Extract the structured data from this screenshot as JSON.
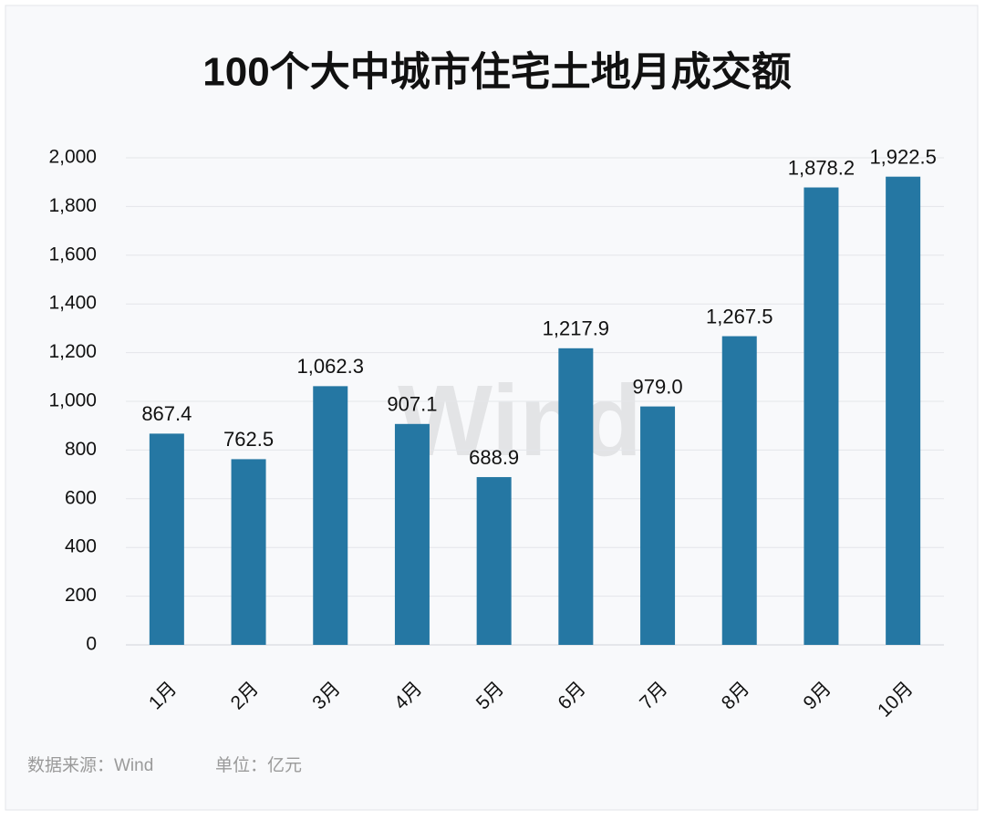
{
  "chart_data": {
    "type": "bar",
    "title": "100个大中城市住宅土地月成交额",
    "categories": [
      "1月",
      "2月",
      "3月",
      "4月",
      "5月",
      "6月",
      "7月",
      "8月",
      "9月",
      "10月"
    ],
    "values": [
      867.4,
      762.5,
      1062.3,
      907.1,
      688.9,
      1217.9,
      979.0,
      1267.5,
      1878.2,
      1922.5
    ],
    "value_labels": [
      "867.4",
      "762.5",
      "1,062.3",
      "907.1",
      "688.9",
      "1,217.9",
      "979.0",
      "1,267.5",
      "1,878.2",
      "1,922.5"
    ],
    "color": "#2577a3",
    "ylim": [
      0,
      2000
    ],
    "yticks": [
      0,
      200,
      400,
      600,
      800,
      {
        "value": 1000,
        "label": "1,000"
      },
      {
        "value": 1200,
        "label": "1,200"
      },
      {
        "value": 1400,
        "label": "1,400"
      },
      {
        "value": 1600,
        "label": "1,600"
      },
      {
        "value": 1800,
        "label": "1,800"
      },
      {
        "value": 2000,
        "label": "2,000"
      }
    ],
    "grid": true,
    "watermark": "Wind",
    "source": "数据来源：Wind",
    "note": "单位：亿元"
  }
}
